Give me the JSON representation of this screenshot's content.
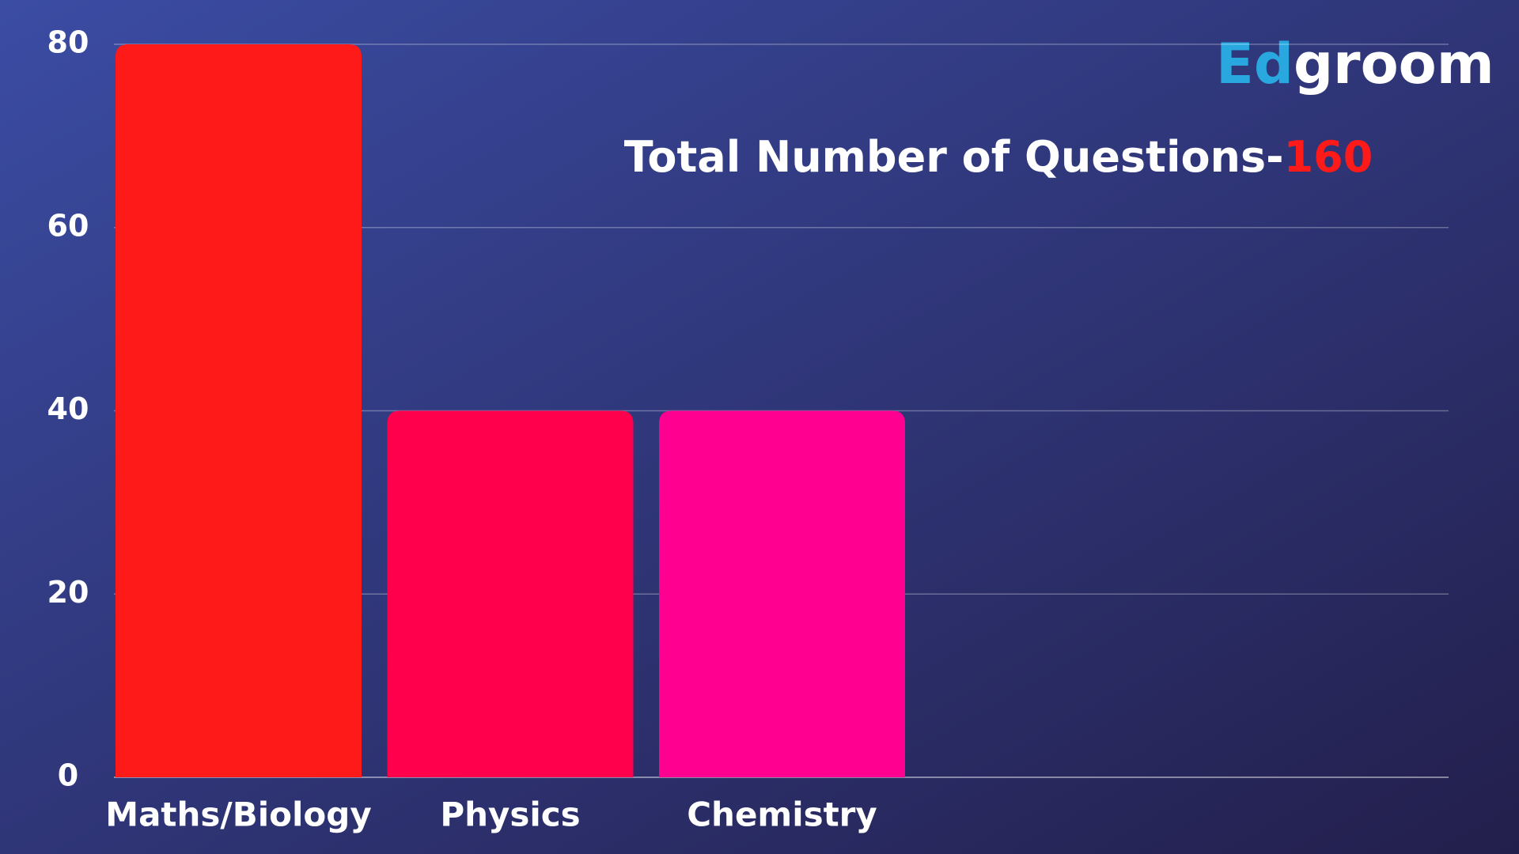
{
  "brand": [
    "Ed",
    "groom"
  ],
  "chart_data": {
    "type": "bar",
    "title": [
      "Total Number of Questions-",
      "160"
    ],
    "categories": [
      "Maths/Biology",
      "Physics",
      "Chemistry"
    ],
    "values": [
      80,
      40,
      40
    ],
    "colors": [
      "#ff1a1a",
      "#ff004c",
      "#ff0090"
    ],
    "ylim": [
      0,
      80
    ],
    "yticks": [
      0,
      20,
      40,
      60,
      80
    ],
    "grid": true
  }
}
